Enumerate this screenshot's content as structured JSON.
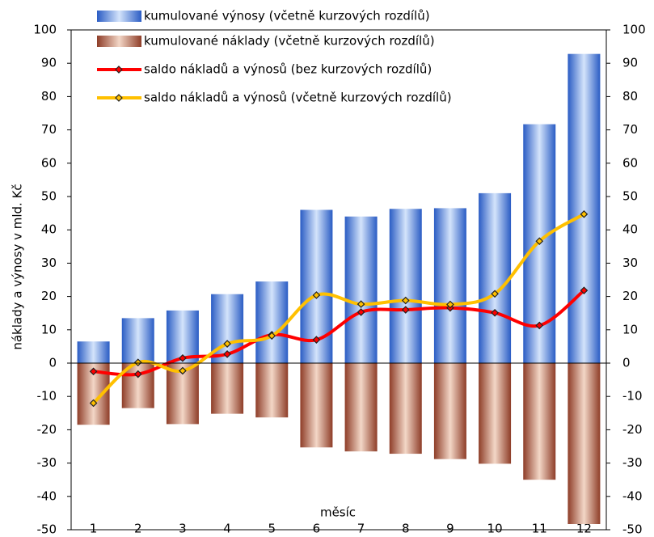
{
  "chart_data": {
    "type": "bar_line",
    "y_label": "náklady a výnosy v mld. Kč",
    "x_label": "měsíc",
    "categories": [
      "1",
      "2",
      "3",
      "4",
      "5",
      "6",
      "7",
      "8",
      "9",
      "10",
      "11",
      "12"
    ],
    "series": [
      {
        "name": "kumulované výnosy (včetně kurzových rozdílů)",
        "kind": "bar",
        "color": "#3a6fd0",
        "values": [
          6.5,
          13.5,
          15.8,
          20.7,
          24.5,
          46,
          44,
          46.3,
          46.5,
          51,
          71.7,
          92.8
        ]
      },
      {
        "name": "kumulované náklady (včetně kurzových rozdílů)",
        "kind": "bar",
        "color": "#9c4a33",
        "values": [
          -18.5,
          -13.5,
          -18.3,
          -15.2,
          -16.3,
          -25.3,
          -26.5,
          -27.2,
          -28.8,
          -30.2,
          -35,
          -48.3
        ]
      },
      {
        "name": "saldo nákladů a výnosů (bez kurzových rozdílů)",
        "kind": "line",
        "color": "#ff0000",
        "values": [
          -2.5,
          -3.3,
          1.5,
          2.7,
          8.5,
          7,
          15.3,
          16,
          16.6,
          15.1,
          11.3,
          21.8
        ]
      },
      {
        "name": "saldo nákladů a výnosů (včetně kurzových rozdílů)",
        "kind": "line",
        "color": "#ffc000",
        "values": [
          -12,
          0.2,
          -2.3,
          5.8,
          8.2,
          20.4,
          17.7,
          18.8,
          17.6,
          20.8,
          36.6,
          44.7
        ]
      }
    ],
    "ylim": [
      -50,
      100
    ],
    "yticks": [
      -50,
      -40,
      -30,
      -20,
      -10,
      0,
      10,
      20,
      30,
      40,
      50,
      60,
      70,
      80,
      90,
      100
    ],
    "y2lim": [
      -50,
      100
    ],
    "y2ticks": [
      -50,
      -40,
      -30,
      -20,
      -10,
      0,
      10,
      20,
      30,
      40,
      50,
      60,
      70,
      80,
      90,
      100
    ]
  }
}
